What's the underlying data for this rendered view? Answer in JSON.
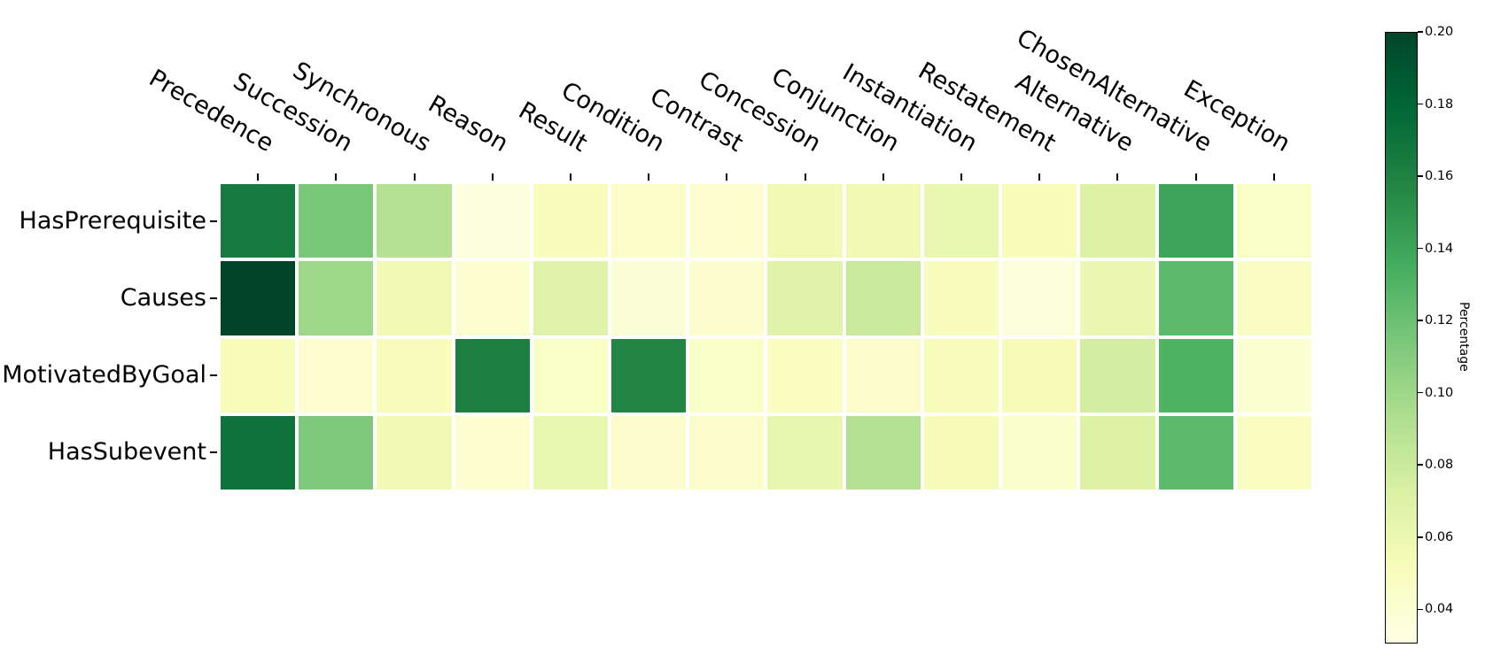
{
  "chart_data": {
    "type": "heatmap",
    "title": "",
    "rows": [
      "HasPrerequisite",
      "Causes",
      "MotivatedByGoal",
      "HasSubevent"
    ],
    "columns": [
      "Precedence",
      "Succession",
      "Synchronous",
      "Reason",
      "Result",
      "Condition",
      "Contrast",
      "Concession",
      "Conjunction",
      "Instantiation",
      "Restatement",
      "Alternative",
      "ChosenAlternative",
      "Exception"
    ],
    "values": [
      [
        0.165,
        0.115,
        0.09,
        0.035,
        0.05,
        0.045,
        0.04,
        0.056,
        0.056,
        0.061,
        0.052,
        0.07,
        0.14,
        0.046
      ],
      [
        0.2,
        0.1,
        0.056,
        0.04,
        0.068,
        0.038,
        0.042,
        0.068,
        0.081,
        0.05,
        0.036,
        0.06,
        0.126,
        0.047
      ],
      [
        0.052,
        0.04,
        0.05,
        0.162,
        0.046,
        0.158,
        0.046,
        0.048,
        0.044,
        0.051,
        0.053,
        0.076,
        0.131,
        0.041
      ],
      [
        0.171,
        0.113,
        0.056,
        0.04,
        0.061,
        0.042,
        0.044,
        0.063,
        0.091,
        0.053,
        0.043,
        0.07,
        0.126,
        0.048
      ]
    ],
    "colormap": "YlGn",
    "vmin": 0.031,
    "vmax": 0.2,
    "grid": false,
    "cell_gap_color": "#ffffff",
    "colorbar": {
      "label": "Percentage",
      "ticks": [
        "0.20",
        "0.18",
        "0.16",
        "0.14",
        "0.12",
        "0.10",
        "0.08",
        "0.06",
        "0.04"
      ],
      "tick_values": [
        0.2,
        0.18,
        0.16,
        0.14,
        0.12,
        0.1,
        0.08,
        0.06,
        0.04
      ],
      "top_value": 0.2,
      "bottom_value": 0.031
    }
  }
}
